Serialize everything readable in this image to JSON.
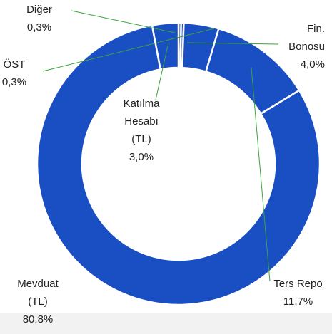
{
  "chart_data": {
    "type": "donut",
    "categories": [
      "Diğer",
      "ÖST",
      "Fin. Bonosu",
      "Ters Repo",
      "Mevduat (TL)",
      "Katılma Hesabı (TL)"
    ],
    "values": [
      0.3,
      0.3,
      4.0,
      11.7,
      80.8,
      3.0
    ],
    "value_labels": [
      "0,3%",
      "0,3%",
      "4,0%",
      "11,7%",
      "80,8%",
      "3,0%"
    ],
    "color": "#1a4fc4"
  }
}
